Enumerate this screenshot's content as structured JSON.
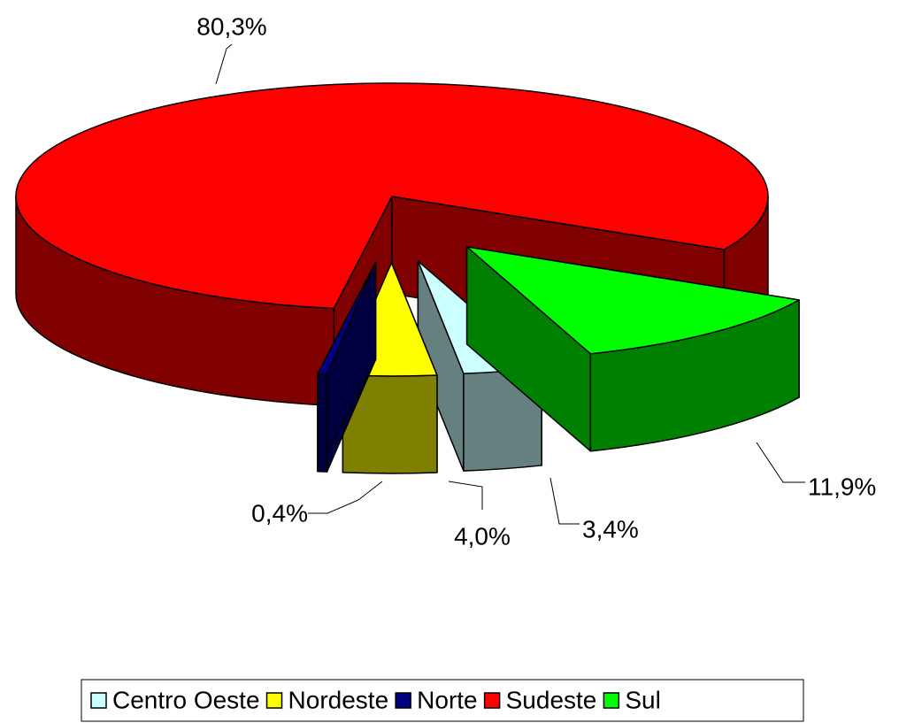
{
  "chart_data": {
    "type": "pie",
    "categories": [
      "Centro Oeste",
      "Nordeste",
      "Norte",
      "Sudeste",
      "Sul"
    ],
    "values": [
      3.4,
      4.0,
      0.4,
      80.3,
      11.9
    ],
    "value_labels": [
      "3,4%",
      "4,0%",
      "0,4%",
      "80,3%",
      "11,9%"
    ],
    "colors": [
      "#ccffff",
      "#ffff00",
      "#000080",
      "#ff0000",
      "#00ff00"
    ],
    "legend": "bottom"
  }
}
